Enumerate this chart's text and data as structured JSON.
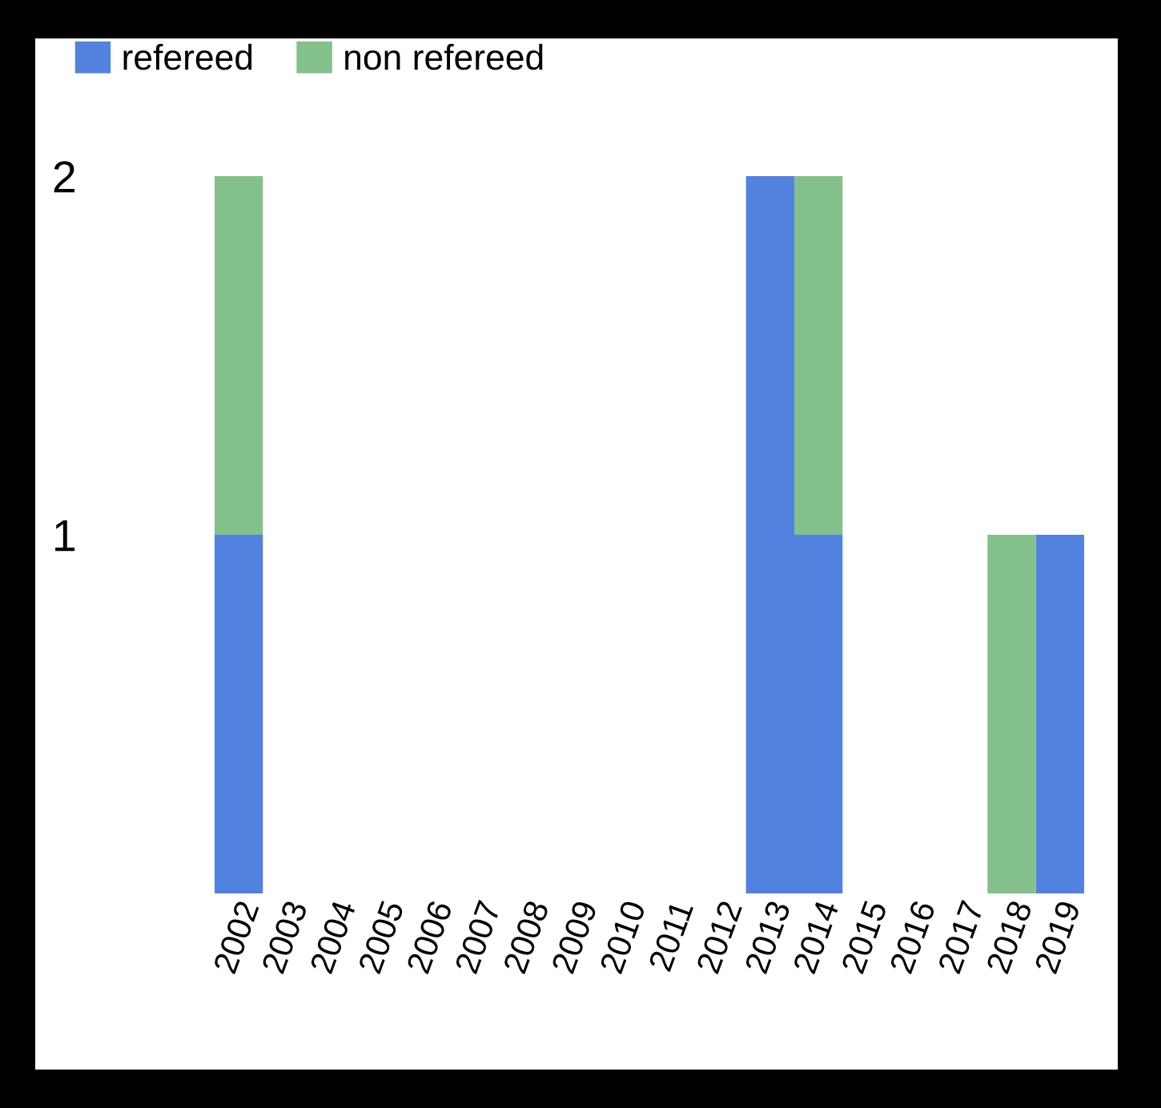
{
  "chart_data": {
    "type": "bar",
    "stacked": true,
    "categories": [
      "2002",
      "2003",
      "2004",
      "2005",
      "2006",
      "2007",
      "2008",
      "2009",
      "2010",
      "2011",
      "2012",
      "2013",
      "2014",
      "2015",
      "2016",
      "2017",
      "2018",
      "2019"
    ],
    "series": [
      {
        "name": "refereed",
        "color": "#5282e0",
        "values": [
          1,
          0,
          0,
          0,
          0,
          0,
          0,
          0,
          0,
          0,
          0,
          2,
          1,
          0,
          0,
          0,
          0,
          1
        ]
      },
      {
        "name": "non refereed",
        "color": "#84c08c",
        "values": [
          1,
          0,
          0,
          0,
          0,
          0,
          0,
          0,
          0,
          0,
          0,
          0,
          1,
          0,
          0,
          0,
          1,
          0
        ]
      }
    ],
    "ylim": [
      0,
      2
    ],
    "yticks": [
      1,
      2
    ],
    "grid": false,
    "legend": "top left"
  }
}
